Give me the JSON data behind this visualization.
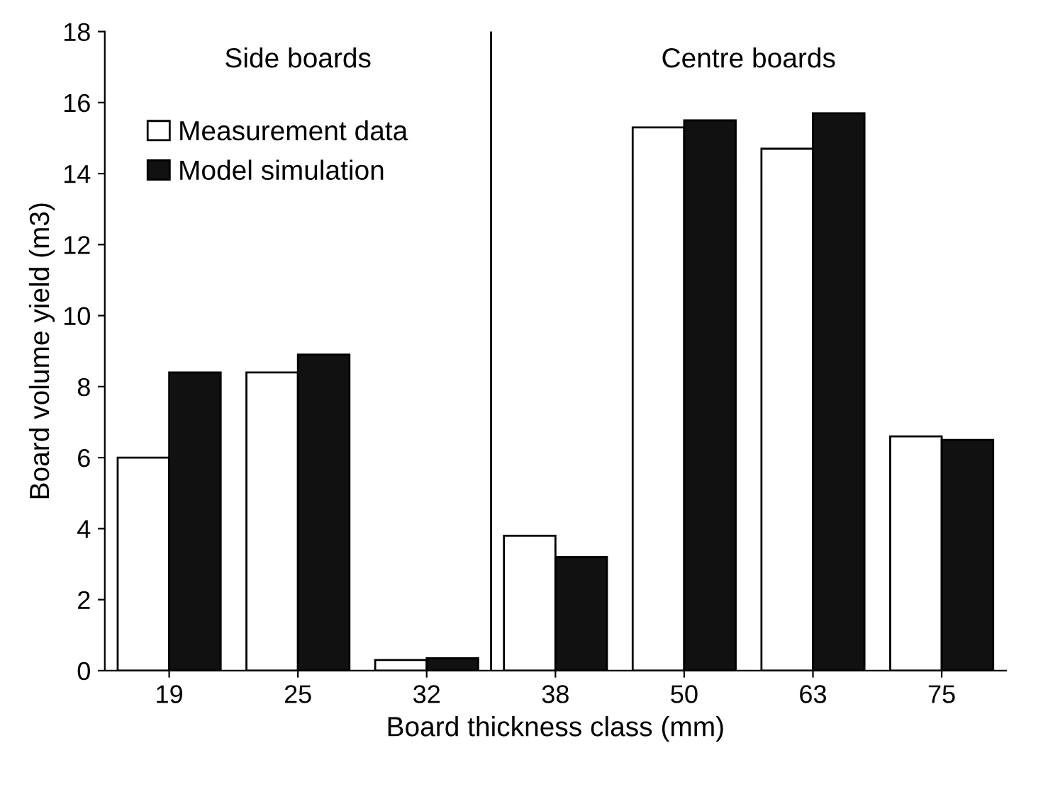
{
  "chart_data": {
    "type": "bar",
    "xlabel": "Board thickness class (mm)",
    "ylabel": "Board volume yield (m3)",
    "categories": [
      "19",
      "25",
      "32",
      "38",
      "50",
      "63",
      "75"
    ],
    "series": [
      {
        "name": "Measurement data",
        "color": "#ffffff",
        "values": [
          6.0,
          8.4,
          0.3,
          3.8,
          15.3,
          14.7,
          6.6
        ]
      },
      {
        "name": "Model simulation",
        "color": "#111111",
        "values": [
          8.4,
          8.9,
          0.35,
          3.2,
          15.5,
          15.7,
          6.5
        ]
      }
    ],
    "ylim": [
      0,
      18
    ],
    "yticks": [
      0,
      2,
      4,
      6,
      8,
      10,
      12,
      14,
      16,
      18
    ],
    "annotations": [
      "Side boards",
      "Centre boards"
    ],
    "legend": "top left",
    "grid": false
  }
}
